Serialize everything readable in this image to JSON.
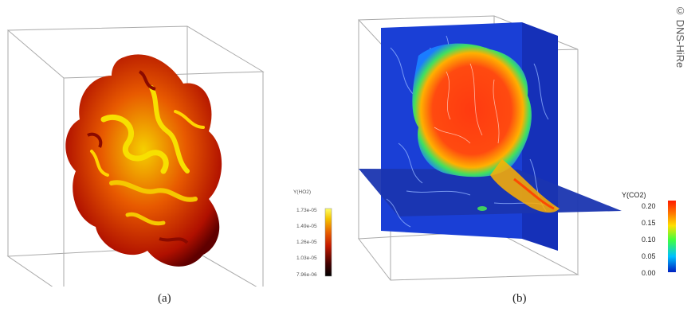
{
  "figure": {
    "panel_a": {
      "caption": "(a)",
      "colorbar": {
        "title": "Y(HO2)",
        "ticks": [
          "1.73e-05",
          "1.49e-05",
          "1.26e-05",
          "1.03e-05",
          "7.96e-06"
        ],
        "colors": [
          "#ffff66",
          "#f5c400",
          "#e86000",
          "#c41a00",
          "#400000",
          "#000000"
        ]
      }
    },
    "panel_b": {
      "caption": "(b)",
      "colorbar": {
        "title": "Y(CO2)",
        "ticks": [
          "0.20",
          "0.15",
          "0.10",
          "0.05",
          "0.00"
        ],
        "colors": [
          "#ff1a00",
          "#ff7a00",
          "#ffe000",
          "#40ff40",
          "#00c0ff",
          "#0020c0"
        ]
      }
    },
    "copyright": "© DNS-HiRe"
  }
}
